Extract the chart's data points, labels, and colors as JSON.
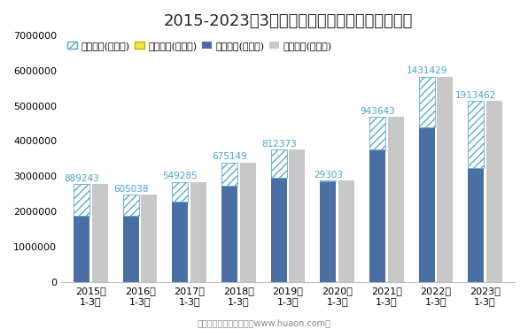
{
  "title": "2015-2023年3月高新技术产业开发区进出口差额",
  "years": [
    "2015年\n1-3月",
    "2016年\n1-3月",
    "2017年\n1-3月",
    "2018年\n1-3月",
    "2019年\n1-3月",
    "2020年\n1-3月",
    "2021年\n1-3月",
    "2022年\n1-3月",
    "2023年\n1-3月"
  ],
  "imports": [
    1880000,
    1880000,
    2290000,
    2720000,
    2950000,
    2850000,
    3750000,
    4400000,
    3230000
  ],
  "exports": [
    2769243,
    2485038,
    2839285,
    3395149,
    3762373,
    2879303,
    4693643,
    5831429,
    5143462
  ],
  "surplus_values": [
    889243,
    605038,
    549285,
    675149,
    812373,
    29303,
    943643,
    1431429,
    1913462
  ],
  "surplus_sign": [
    1,
    1,
    1,
    1,
    1,
    1,
    1,
    1,
    1
  ],
  "legend_labels": [
    "贸易顺差(万美元)",
    "贸易逆差(万美元)",
    "进口总额(万美元)",
    "出口总额(万美元)"
  ],
  "color_import": "#4a6fa5",
  "color_export": "#c8c8c8",
  "color_surplus_face": "#ffffff",
  "color_surplus_edge": "#5aaccf",
  "color_deficit_face": "#f5e642",
  "annotation_color": "#4a9fd4",
  "ylim": [
    0,
    7000000
  ],
  "yticks": [
    0,
    1000000,
    2000000,
    3000000,
    4000000,
    5000000,
    6000000,
    7000000
  ],
  "footer": "制图：华经产业研究院（www.huaon.com）",
  "title_fontsize": 13,
  "tick_fontsize": 8,
  "legend_fontsize": 8,
  "annotation_fontsize": 7.5
}
